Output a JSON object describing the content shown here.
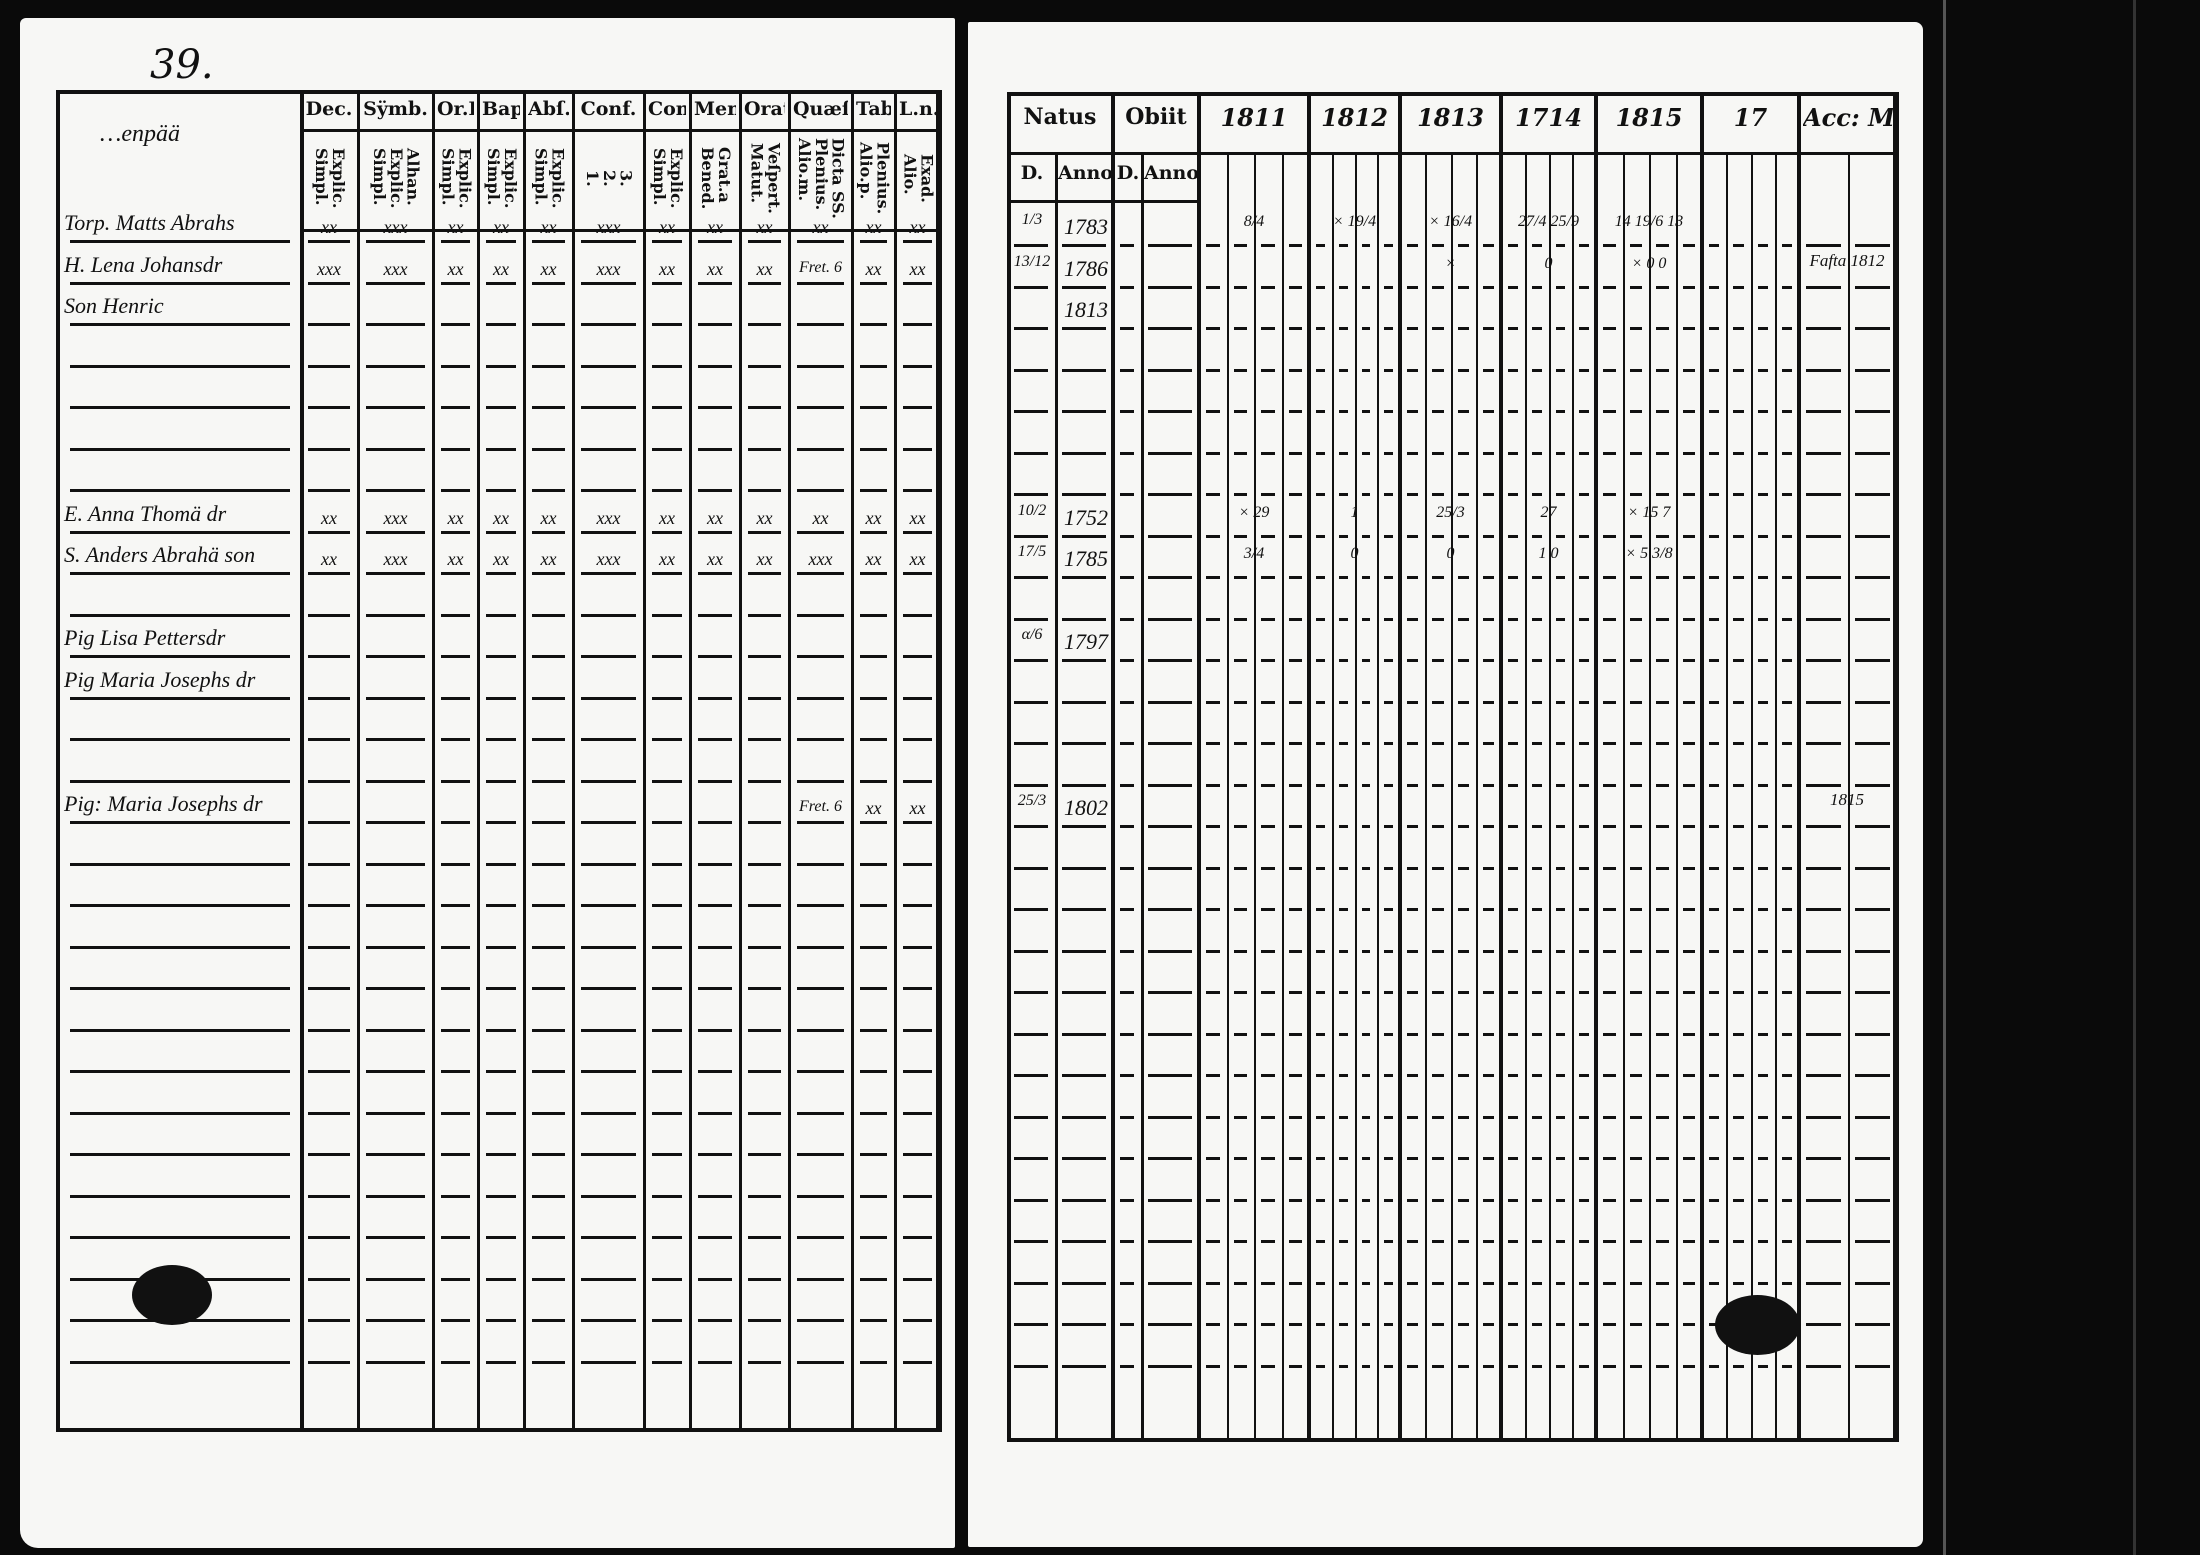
{
  "left_page": {
    "page_number": "39.",
    "village": "…enpää",
    "columns": [
      {
        "label": "Dec.",
        "sub": "Explic.\nSimpl."
      },
      {
        "label": "Sÿmb.",
        "sub": "Alhan.\nExplic.\nSimpl."
      },
      {
        "label": "Or.D",
        "sub": "Explic.\nSimpl."
      },
      {
        "label": "Bapt.",
        "sub": "Explic.\nSimpl."
      },
      {
        "label": "Abſ.",
        "sub": "Explic.\nSimpl."
      },
      {
        "label": "Conf.",
        "sub": "3.\n2.\n1."
      },
      {
        "label": "Con.D",
        "sub": "Explic.\nSimpl."
      },
      {
        "label": "Menſ.",
        "sub": "Grat.a\nBened."
      },
      {
        "label": "Orat.",
        "sub": "Veſpert.\nMatut."
      },
      {
        "label": "Quæſt.",
        "sub": "Dicta SS.\nPlenius.\nAlio.m."
      },
      {
        "label": "Tabel.",
        "sub": "Plenius.\nAlio.p."
      },
      {
        "label": "L.n.",
        "sub": "Exad.\nAlio."
      }
    ],
    "entries": [
      {
        "row": 0,
        "name": "Torp. Matts Abrahs",
        "marks": [
          "xx",
          "xxx",
          "xx",
          "xx",
          "xx",
          "xxx",
          "xx",
          "xx",
          "xx",
          "xx",
          "xx",
          "xx"
        ]
      },
      {
        "row": 1,
        "name": "H. Lena Johansdr",
        "marks": [
          "xxx",
          "xxx",
          "xx",
          "xx",
          "xx",
          "xxx",
          "xx",
          "xx",
          "xx",
          "Fret. 6",
          "xx",
          "xx"
        ]
      },
      {
        "row": 2,
        "name": "Son Henric",
        "marks": []
      },
      {
        "row": 7,
        "name": "E. Anna Thomä dr",
        "marks": [
          "xx",
          "xxx",
          "xx",
          "xx",
          "xx",
          "xxx",
          "xx",
          "xx",
          "xx",
          "xx",
          "xx",
          "xx"
        ]
      },
      {
        "row": 8,
        "name": "S. Anders Abrahä son",
        "marks": [
          "xx",
          "xxx",
          "xx",
          "xx",
          "xx",
          "xxx",
          "xx",
          "xx",
          "xx",
          "xxx",
          "xx",
          "xx"
        ]
      },
      {
        "row": 10,
        "name": "Pig Lisa Pettersdr",
        "marks": []
      },
      {
        "row": 11,
        "name": "Pig Maria Josephs dr",
        "marks": []
      },
      {
        "row": 14,
        "name": "Pig: Maria Josephs dr",
        "marks": [
          "",
          "",
          "",
          "",
          "",
          "",
          "",
          "",
          "",
          "Fret. 6",
          "xx",
          "xx"
        ]
      }
    ]
  },
  "right_page": {
    "columns": [
      {
        "label": "Natus",
        "sub": [
          "D.",
          "Anno"
        ]
      },
      {
        "label": "Obiit",
        "sub": [
          "D.",
          "Anno"
        ]
      },
      {
        "label": "1811"
      },
      {
        "label": "1812"
      },
      {
        "label": "1813"
      },
      {
        "label": "1714"
      },
      {
        "label": "1815"
      },
      {
        "label": "17"
      },
      {
        "label": "Acc: Mod."
      }
    ],
    "entries": [
      {
        "row": 0,
        "day": "1/3",
        "year": "1783",
        "years": [
          "8/4",
          "× 19/4",
          "× 16/4",
          "27/4 25/9",
          "14 19/6 13"
        ],
        "note": ""
      },
      {
        "row": 1,
        "day": "13/12",
        "year": "1786",
        "years": [
          "",
          "",
          "×",
          "0",
          "× 0 0"
        ],
        "note": "Fafta 1812"
      },
      {
        "row": 2,
        "day": "",
        "year": "1813",
        "years": [
          "",
          "",
          "",
          "",
          ""
        ],
        "note": ""
      },
      {
        "row": 7,
        "day": "10/2",
        "year": "1752",
        "years": [
          "× 29",
          "1",
          "25/3",
          "27",
          "× 15 7"
        ],
        "note": ""
      },
      {
        "row": 8,
        "day": "17/5",
        "year": "1785",
        "years": [
          "3/4",
          "0",
          "0",
          "1 0",
          "× 5 3/8"
        ],
        "note": ""
      },
      {
        "row": 10,
        "day": "α/6",
        "year": "1797",
        "years": [
          "",
          "",
          "",
          "",
          ""
        ],
        "note": ""
      },
      {
        "row": 14,
        "day": "25/3",
        "year": "1802",
        "years": [
          "",
          "",
          "",
          "",
          ""
        ],
        "note": "1815"
      }
    ]
  }
}
